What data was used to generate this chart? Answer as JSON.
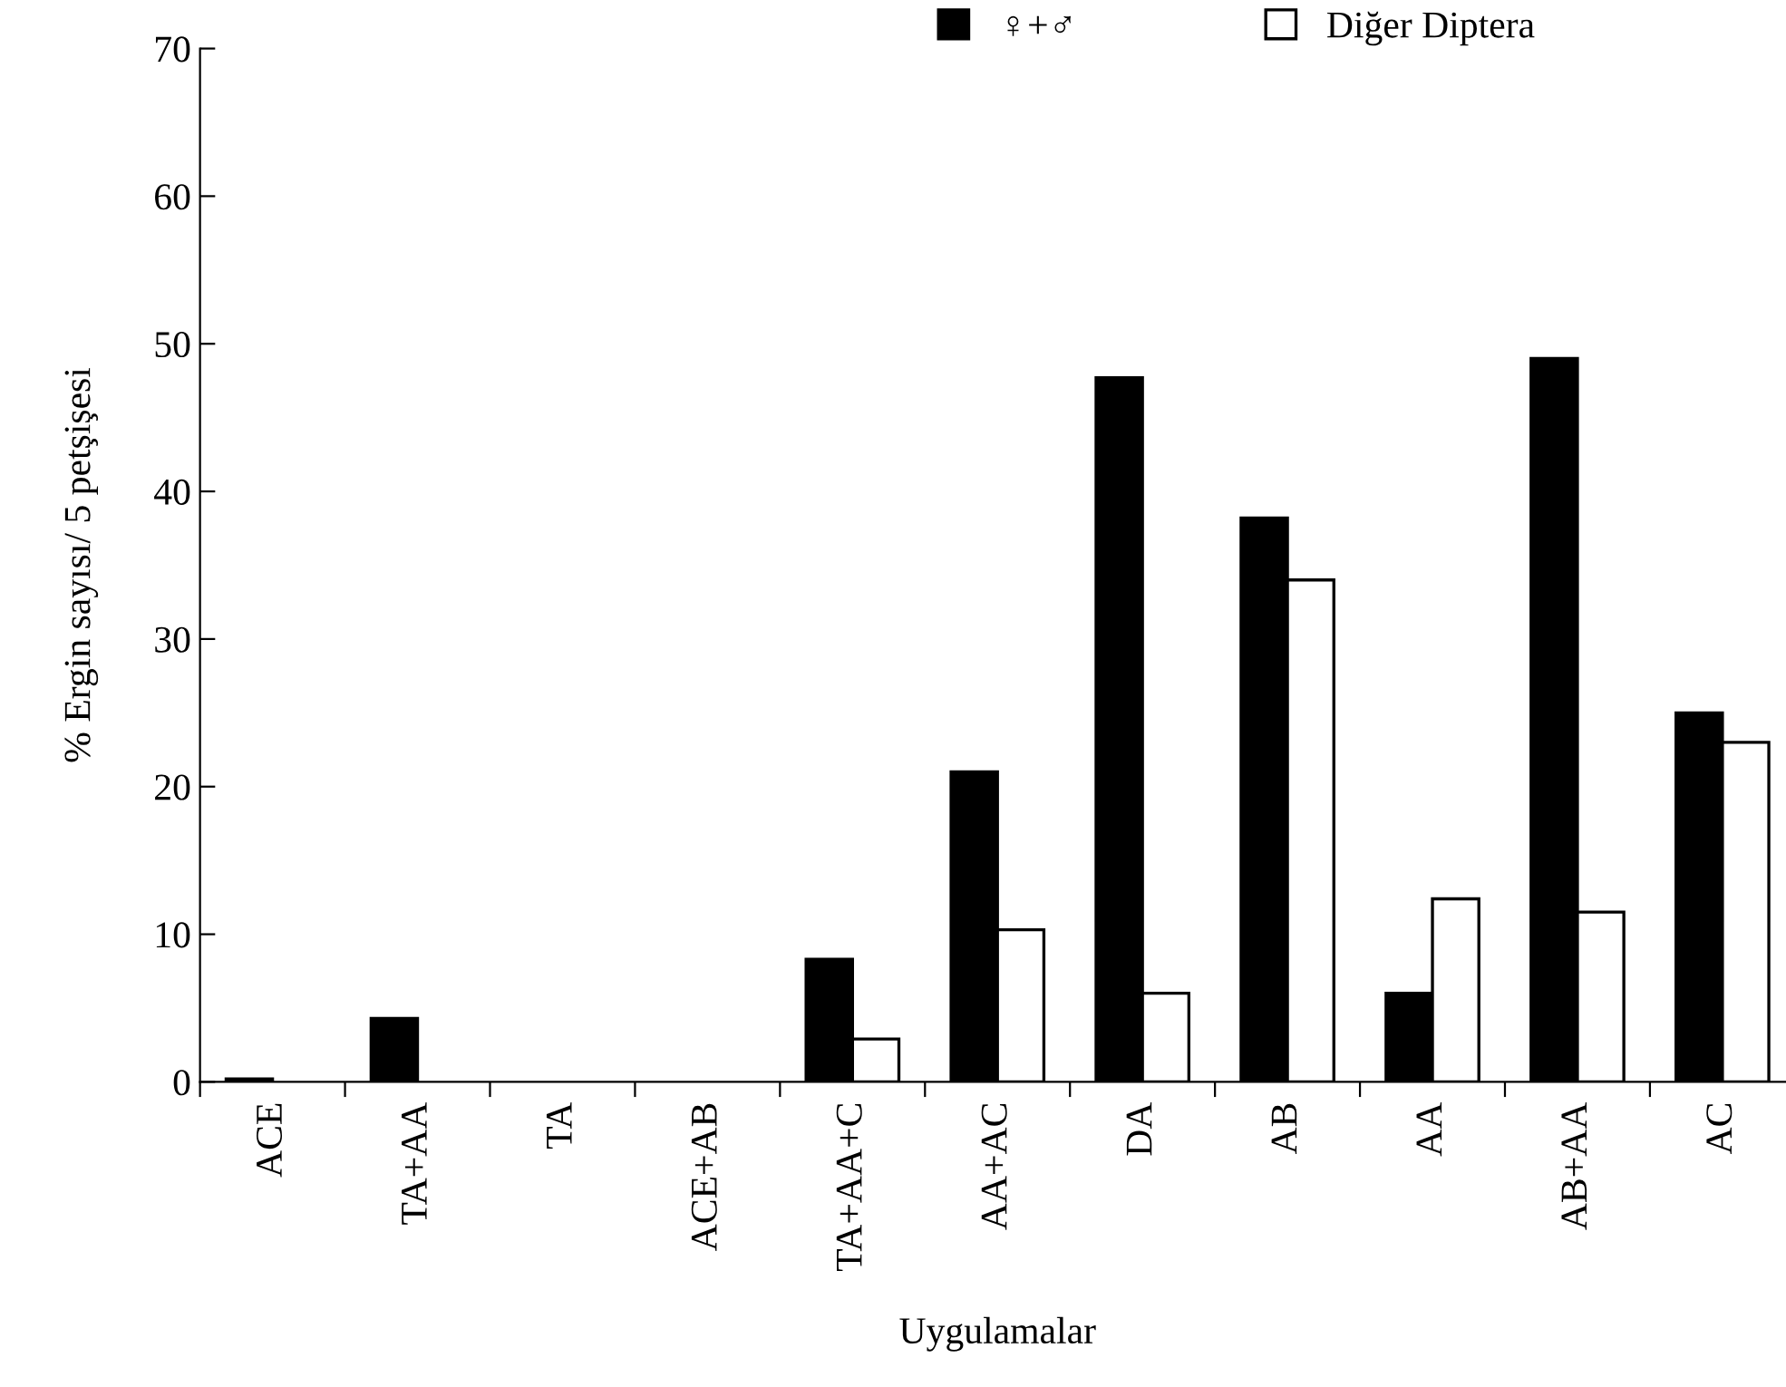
{
  "chart_data": {
    "type": "bar",
    "xlabel": "Uygulamalar",
    "ylabel": "% Ergin sayısı/ 5 petşişesi",
    "categories": [
      "ACE",
      "TA+AA",
      "TA",
      "ACE+AB",
      "TA+AA+C",
      "AA+AC",
      "DA",
      "AB",
      "AA",
      "AB+AA",
      "AC"
    ],
    "series": [
      {
        "name": "♀+♂",
        "color": "#000000",
        "values": [
          0.2,
          4.3,
          0,
          0,
          8.3,
          21.0,
          47.7,
          38.2,
          6.0,
          49.0,
          25.0
        ]
      },
      {
        "name": "Diğer Diptera",
        "color": "#ffffff",
        "values": [
          0,
          0,
          0,
          0,
          2.9,
          10.3,
          6.0,
          34.0,
          12.4,
          11.5,
          23.0
        ]
      }
    ],
    "ylim": [
      0,
      70
    ],
    "yticks": [
      0,
      10,
      20,
      30,
      40,
      50,
      60,
      70
    ],
    "grid": false,
    "legend": "top"
  }
}
